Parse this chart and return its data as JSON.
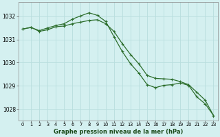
{
  "title": "Graphe pression niveau de la mer (hPa)",
  "bg_color": "#d4f0f0",
  "grid_color": "#b8dede",
  "line_color": "#2d6e2d",
  "xlim": [
    -0.5,
    23.5
  ],
  "ylim": [
    1027.5,
    1032.6
  ],
  "yticks": [
    1028,
    1029,
    1030,
    1031,
    1032
  ],
  "xticks": [
    0,
    1,
    2,
    3,
    4,
    5,
    6,
    7,
    8,
    9,
    10,
    11,
    12,
    13,
    14,
    15,
    16,
    17,
    18,
    19,
    20,
    21,
    22,
    23
  ],
  "series1_x": [
    0,
    1,
    2,
    3,
    4,
    5,
    6,
    7,
    8,
    9,
    10,
    11,
    12,
    13,
    14,
    15,
    16,
    17,
    18,
    19,
    20,
    21,
    22,
    23
  ],
  "series1_y": [
    1031.45,
    1031.52,
    1031.38,
    1031.5,
    1031.6,
    1031.68,
    1031.88,
    1032.02,
    1032.15,
    1032.04,
    1031.78,
    1031.12,
    1030.48,
    1029.95,
    1029.55,
    1029.05,
    1028.92,
    1029.02,
    1029.05,
    1029.12,
    1029.02,
    1028.52,
    1028.22,
    1027.72
  ],
  "series2_x": [
    0,
    1,
    2,
    3,
    4,
    5,
    6,
    7,
    8,
    9,
    10,
    11,
    12,
    13,
    14,
    15,
    16,
    17,
    18,
    19,
    20,
    21,
    22,
    23
  ],
  "series2_y": [
    1031.45,
    1031.52,
    1031.35,
    1031.42,
    1031.55,
    1031.58,
    1031.68,
    1031.75,
    1031.82,
    1031.85,
    1031.68,
    1031.35,
    1030.82,
    1030.35,
    1029.95,
    1029.45,
    1029.32,
    1029.3,
    1029.28,
    1029.18,
    1029.05,
    1028.72,
    1028.38,
    1027.72
  ]
}
